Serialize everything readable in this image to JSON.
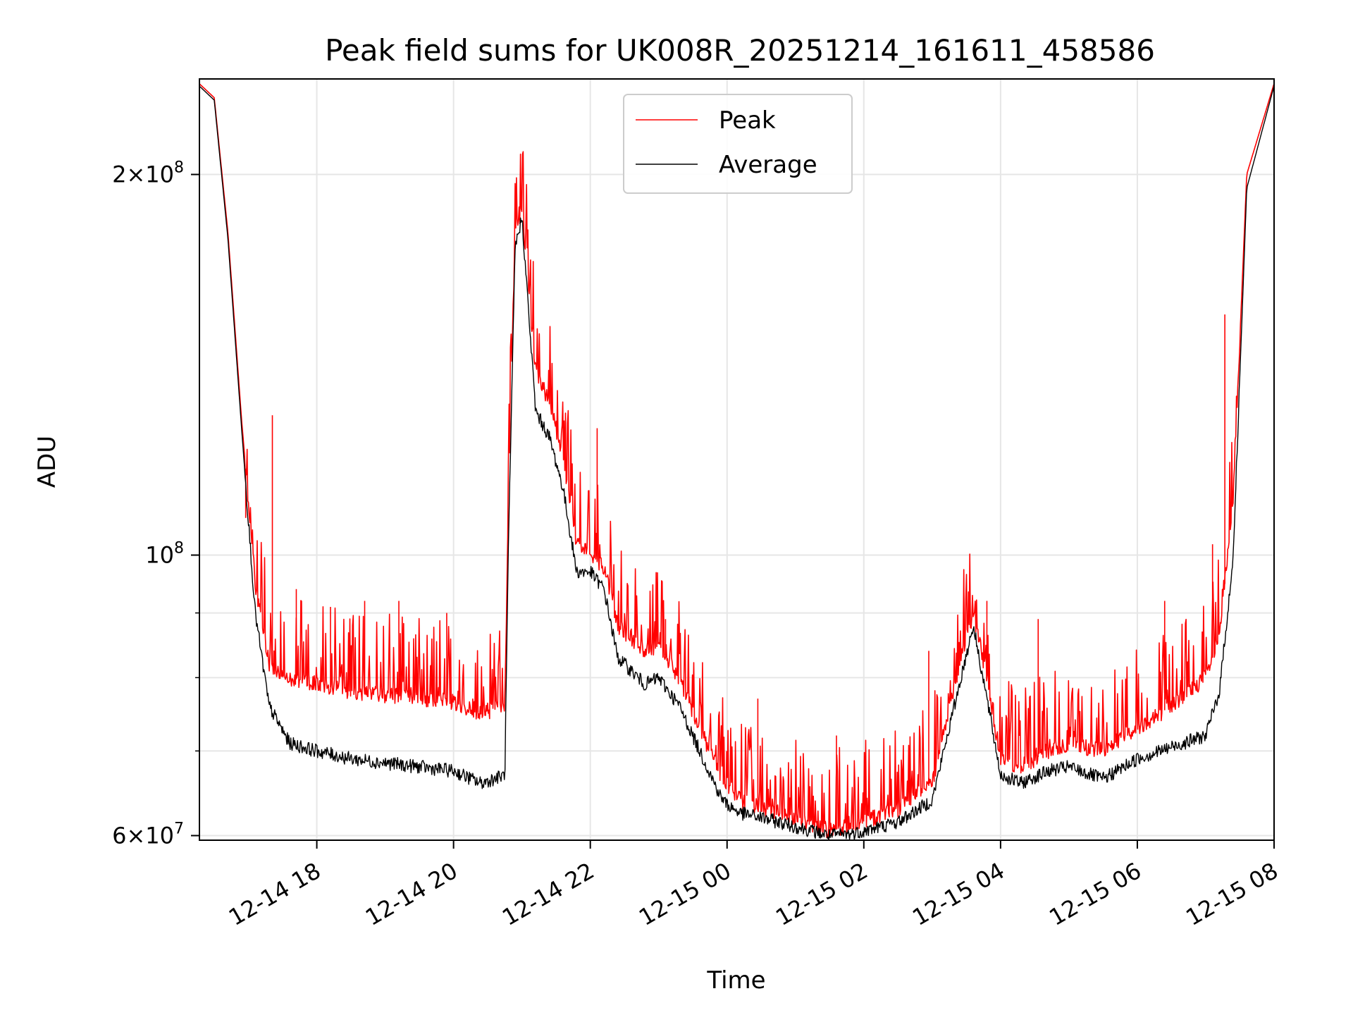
{
  "chart_data": {
    "type": "line",
    "title": "Peak field sums for UK008R_20251214_161611_458586",
    "xlabel": "Time",
    "ylabel": "ADU",
    "yscale": "log",
    "ylim": [
      59500000,
      238000000
    ],
    "xlim_hours": [
      16.2833,
      32.0
    ],
    "grid": true,
    "legend_position": "upper center",
    "x_ticks": [
      {
        "label": "12-14 18",
        "hour": 18
      },
      {
        "label": "12-14 20",
        "hour": 20
      },
      {
        "label": "12-14 22",
        "hour": 22
      },
      {
        "label": "12-15 00",
        "hour": 24
      },
      {
        "label": "12-15 02",
        "hour": 26
      },
      {
        "label": "12-15 04",
        "hour": 28
      },
      {
        "label": "12-15 06",
        "hour": 30
      },
      {
        "label": "12-15 08",
        "hour": 32
      }
    ],
    "y_ticks_major": [
      {
        "base": "6",
        "exp": "7",
        "value": 60000000
      },
      {
        "base": "",
        "exp": "8",
        "value": 100000000
      },
      {
        "base": "2",
        "exp": "8",
        "value": 200000000
      }
    ],
    "y_ticks_minor": [
      70000000,
      80000000,
      90000000
    ],
    "series": [
      {
        "name": "Peak",
        "color": "#ff0000",
        "x": [
          16.28,
          16.5,
          16.7,
          16.9,
          17.1,
          17.3,
          17.6,
          18.0,
          18.5,
          19.0,
          19.5,
          20.0,
          20.4,
          20.75,
          20.8,
          20.9,
          21.0,
          21.2,
          21.4,
          21.6,
          21.8,
          22.0,
          22.2,
          22.4,
          22.6,
          22.8,
          23.0,
          23.3,
          23.6,
          23.9,
          24.0,
          24.2,
          24.5,
          25.0,
          25.5,
          25.8,
          26.0,
          26.5,
          27.0,
          27.3,
          27.6,
          27.8,
          28.0,
          28.3,
          28.7,
          29.0,
          29.5,
          29.8,
          30.0,
          30.5,
          31.0,
          31.2,
          31.4,
          31.6,
          32.0
        ],
        "y": [
          236000000,
          230000000,
          180000000,
          128000000,
          95000000,
          82000000,
          80000000,
          79000000,
          78000000,
          77500000,
          77000000,
          76500000,
          75000000,
          76000000,
          110000000,
          180000000,
          188000000,
          140000000,
          132000000,
          120000000,
          102000000,
          100000000,
          98000000,
          88000000,
          86000000,
          84000000,
          85000000,
          80000000,
          73000000,
          67000000,
          66000000,
          64000000,
          63000000,
          62000000,
          60500000,
          61000000,
          61500000,
          63000000,
          66000000,
          78000000,
          90000000,
          80000000,
          69000000,
          68000000,
          70000000,
          71000000,
          70000000,
          72000000,
          73000000,
          76000000,
          80000000,
          86000000,
          110000000,
          200000000,
          236000000
        ],
        "spikes": [
          {
            "hour": 16.96,
            "value": 107000000
          },
          {
            "hour": 17.35,
            "value": 129000000
          },
          {
            "hour": 17.7,
            "value": 94000000
          },
          {
            "hour": 18.2,
            "value": 91000000
          },
          {
            "hour": 18.7,
            "value": 92000000
          },
          {
            "hour": 19.2,
            "value": 92000000
          },
          {
            "hour": 19.9,
            "value": 90000000
          },
          {
            "hour": 22.1,
            "value": 126000000
          },
          {
            "hour": 23.1,
            "value": 89000000
          },
          {
            "hour": 24.45,
            "value": 77000000
          },
          {
            "hour": 25.6,
            "value": 72000000
          },
          {
            "hour": 26.95,
            "value": 84000000
          },
          {
            "hour": 27.8,
            "value": 92000000
          },
          {
            "hour": 28.55,
            "value": 89000000
          },
          {
            "hour": 30.4,
            "value": 92000000
          },
          {
            "hour": 31.1,
            "value": 102000000
          },
          {
            "hour": 31.28,
            "value": 155000000
          }
        ]
      },
      {
        "name": "Average",
        "color": "#000000",
        "x": [
          16.28,
          16.5,
          16.7,
          16.9,
          17.1,
          17.3,
          17.6,
          18.0,
          18.5,
          19.0,
          19.5,
          20.0,
          20.4,
          20.75,
          20.8,
          20.9,
          21.0,
          21.2,
          21.4,
          21.6,
          21.8,
          22.0,
          22.2,
          22.4,
          22.6,
          22.8,
          23.0,
          23.3,
          23.6,
          23.9,
          24.0,
          24.2,
          24.5,
          25.0,
          25.5,
          25.8,
          26.0,
          26.5,
          27.0,
          27.3,
          27.6,
          27.8,
          28.0,
          28.3,
          28.7,
          29.0,
          29.5,
          29.8,
          30.0,
          30.5,
          31.0,
          31.2,
          31.4,
          31.6,
          32.0
        ],
        "y": [
          235000000,
          229000000,
          178000000,
          126000000,
          90000000,
          76000000,
          71000000,
          70000000,
          69000000,
          68500000,
          68000000,
          67500000,
          66000000,
          67000000,
          100000000,
          175000000,
          185000000,
          130000000,
          124000000,
          113000000,
          97000000,
          97000000,
          94000000,
          83000000,
          81000000,
          79000000,
          80000000,
          76000000,
          70000000,
          64500000,
          63500000,
          62500000,
          62000000,
          61000000,
          60000000,
          60200000,
          60500000,
          61500000,
          64000000,
          75000000,
          88000000,
          77000000,
          67000000,
          66000000,
          67500000,
          68000000,
          66500000,
          68000000,
          69000000,
          70500000,
          72000000,
          78000000,
          99000000,
          195000000,
          235000000
        ]
      }
    ]
  }
}
